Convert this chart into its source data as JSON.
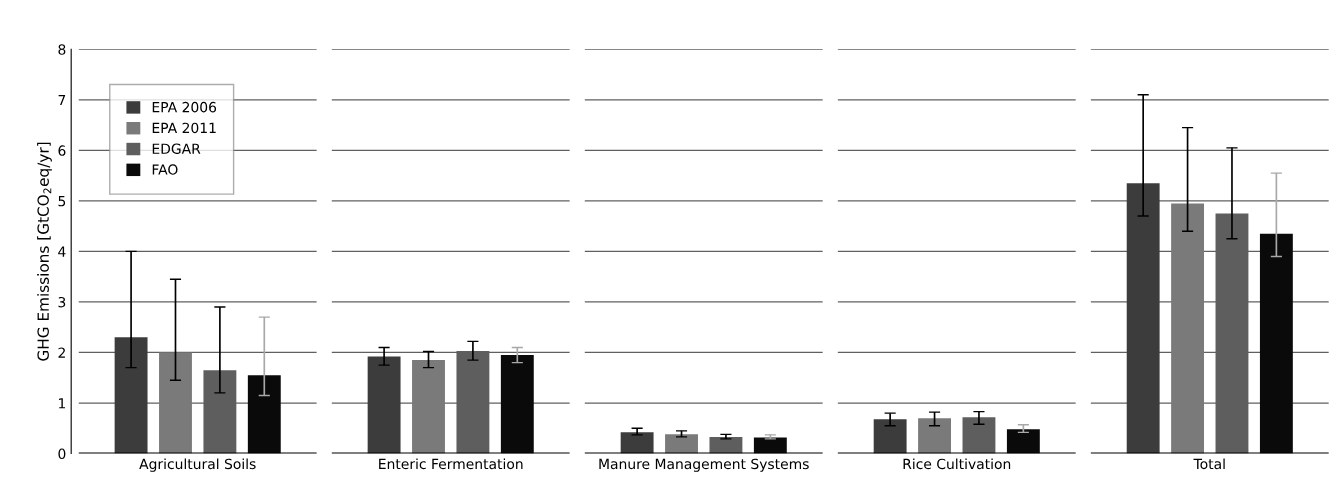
{
  "chart_data": {
    "type": "bar",
    "ylabel": "GHG Emissions [GtCO$_{2}$eq/yr]",
    "categories": [
      "Agricultural Soils",
      "Enteric Fermentation",
      "Manure Management Systems",
      "Rice Cultivation",
      "Total"
    ],
    "series": [
      {
        "name": "EPA 2006",
        "color": "#3c3c3c",
        "values": [
          2.3,
          1.92,
          0.42,
          0.68,
          5.35
        ],
        "errors": [
          [
            1.7,
            4.0
          ],
          [
            1.75,
            2.1
          ],
          [
            0.37,
            0.5
          ],
          [
            0.55,
            0.8
          ],
          [
            4.7,
            7.1
          ]
        ]
      },
      {
        "name": "EPA 2011",
        "color": "#7a7a7a",
        "values": [
          2.0,
          1.85,
          0.38,
          0.7,
          4.95
        ],
        "errors": [
          [
            1.45,
            3.45
          ],
          [
            1.7,
            2.02
          ],
          [
            0.33,
            0.45
          ],
          [
            0.55,
            0.82
          ],
          [
            4.4,
            6.45
          ]
        ]
      },
      {
        "name": "EDGAR",
        "color": "#5e5e5e",
        "values": [
          1.65,
          2.03,
          0.33,
          0.72,
          4.75
        ],
        "errors": [
          [
            1.2,
            2.9
          ],
          [
            1.85,
            2.22
          ],
          [
            0.29,
            0.38
          ],
          [
            0.58,
            0.83
          ],
          [
            4.25,
            6.05
          ]
        ]
      },
      {
        "name": "FAO",
        "color": "#0a0a0a",
        "values": [
          1.55,
          1.95,
          0.32,
          0.48,
          4.35
        ],
        "errors": [
          [
            1.15,
            2.7
          ],
          [
            1.8,
            2.1
          ],
          [
            0.29,
            0.37
          ],
          [
            0.42,
            0.57
          ],
          [
            3.9,
            5.55
          ]
        ]
      }
    ],
    "ylim": [
      0,
      8
    ],
    "yticks": [
      0,
      1,
      2,
      3,
      4,
      5,
      6,
      7,
      8
    ],
    "grid": "y",
    "legend": "top left"
  }
}
